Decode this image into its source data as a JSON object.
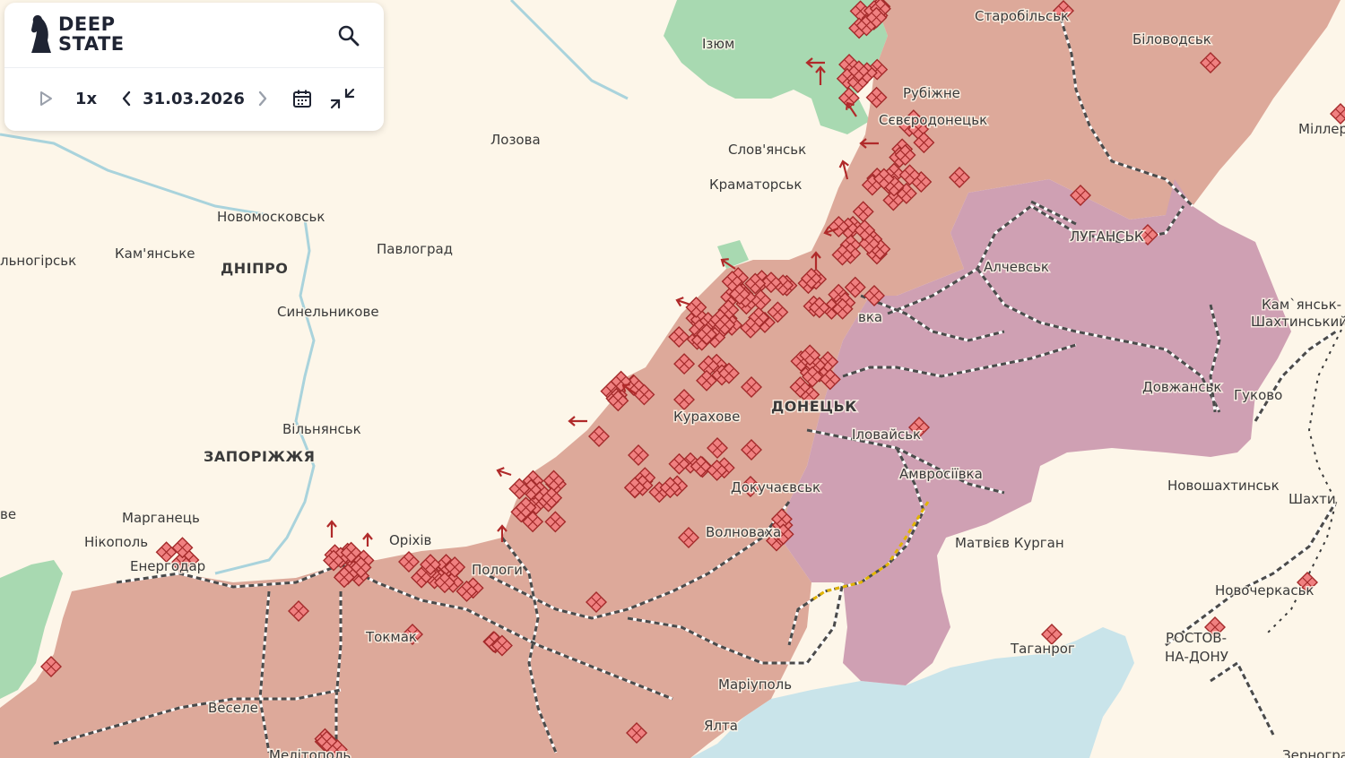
{
  "app": {
    "logo_line1": "DEEP",
    "logo_line2": "STATE",
    "speed": "1x",
    "date": "31.03.2026"
  },
  "colors": {
    "land": "#fdf6e9",
    "occupied": "#dda99a",
    "occupied_before_2022": "#cfa0b3",
    "liberated": "#9fd6ab",
    "sea": "#c9e4ea",
    "marker_fill": "#f08080",
    "marker_stroke": "#a32a2a"
  },
  "icons": [
    "play-icon",
    "chevron-left-icon",
    "chevron-right-icon",
    "calendar-icon",
    "collapse-icon",
    "search-icon",
    "knight-logo-icon",
    "battle-marker-icon",
    "attack-arrow-icon"
  ],
  "cities": [
    {
      "name": "Старобільськ"
    },
    {
      "name": "Біловодськ"
    },
    {
      "name": "Ізюм"
    },
    {
      "name": "Рубіжне"
    },
    {
      "name": "Сєвєродонецьк"
    },
    {
      "name": "Міллер"
    },
    {
      "name": "Лозова"
    },
    {
      "name": "Слов'янськ"
    },
    {
      "name": "Краматорськ"
    },
    {
      "name": "ЛУГАНСЬК"
    },
    {
      "name": "Новомосковськ"
    },
    {
      "name": "Павлоград"
    },
    {
      "name": "Алчевськ"
    },
    {
      "name": "Кам'янське"
    },
    {
      "name": "льногірськ"
    },
    {
      "name": "ДНІПРО"
    },
    {
      "name": "Синельникове"
    },
    {
      "name": "вка"
    },
    {
      "name": "Кам`янськ-"
    },
    {
      "name": "Шахтинський"
    },
    {
      "name": "Довжанськ"
    },
    {
      "name": "Гуково"
    },
    {
      "name": "Курахове"
    },
    {
      "name": "ДОНЕЦЬК"
    },
    {
      "name": "Вільнянськ"
    },
    {
      "name": "Іловайськ"
    },
    {
      "name": "ЗАПОРІЖЖЯ"
    },
    {
      "name": "Амвросіївка"
    },
    {
      "name": "Новошахтинськ"
    },
    {
      "name": "Докучаєвськ"
    },
    {
      "name": "Шахти"
    },
    {
      "name": "Марганець"
    },
    {
      "name": "ве"
    },
    {
      "name": "Нікополь"
    },
    {
      "name": "Оріхів"
    },
    {
      "name": "Волноваха"
    },
    {
      "name": "Матвієв Курган"
    },
    {
      "name": "Енергодар"
    },
    {
      "name": "Пологи"
    },
    {
      "name": "Новочеркаськ"
    },
    {
      "name": "Токмак"
    },
    {
      "name": "Таганрог"
    },
    {
      "name": "РОСТОВ-"
    },
    {
      "name": "НА-ДОНУ"
    },
    {
      "name": "Маріуполь"
    },
    {
      "name": "Веселе"
    },
    {
      "name": "Ялта"
    },
    {
      "name": "Мелітополь"
    },
    {
      "name": "Зерногра"
    }
  ]
}
